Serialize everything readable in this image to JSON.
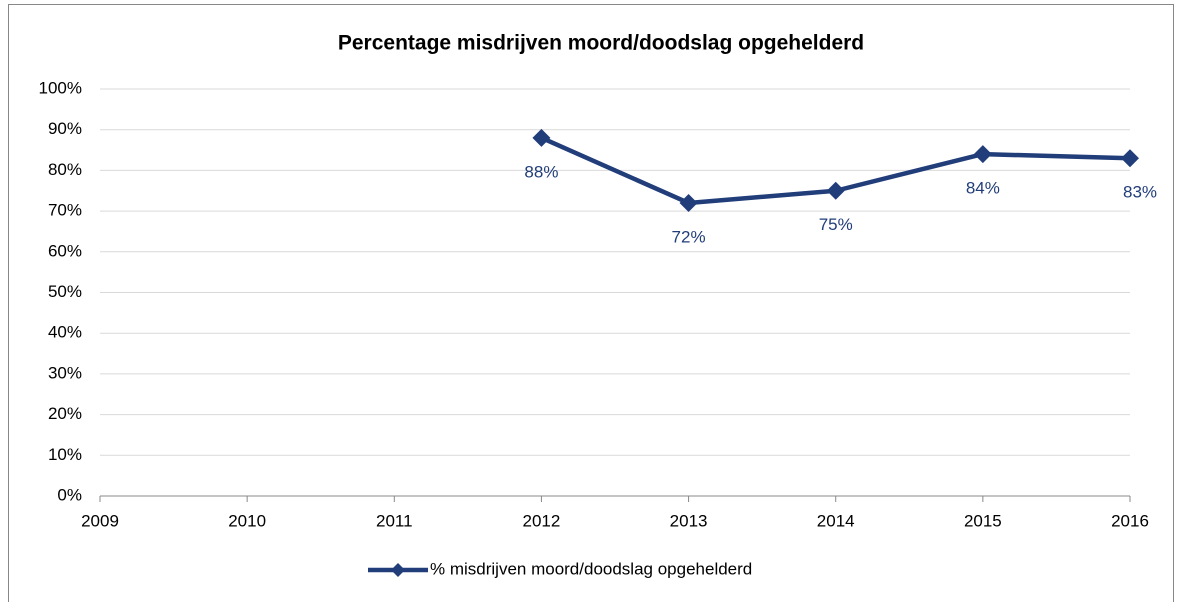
{
  "chart_data": {
    "type": "line",
    "title": "Percentage misdrijven moord/doodslag opgehelderd",
    "x": [
      2009,
      2010,
      2011,
      2012,
      2013,
      2014,
      2015,
      2016
    ],
    "xlim": [
      2009,
      2016
    ],
    "xticks": [
      2009,
      2010,
      2011,
      2012,
      2013,
      2014,
      2015,
      2016
    ],
    "series": [
      {
        "name": "% misdrijven moord/doodslag opgehelderd",
        "color": "#213d7a",
        "values": [
          null,
          null,
          null,
          88,
          72,
          75,
          84,
          83
        ],
        "value_labels": [
          null,
          null,
          null,
          "88%",
          "72%",
          "75%",
          "84%",
          "83%"
        ]
      }
    ],
    "ylim": [
      0,
      100
    ],
    "yticks": [
      {
        "value": 0,
        "label": "0%"
      },
      {
        "value": 10,
        "label": "10%"
      },
      {
        "value": 20,
        "label": "20%"
      },
      {
        "value": 30,
        "label": "30%"
      },
      {
        "value": 40,
        "label": "40%"
      },
      {
        "value": 50,
        "label": "50%"
      },
      {
        "value": 60,
        "label": "60%"
      },
      {
        "value": 70,
        "label": "70%"
      },
      {
        "value": 80,
        "label": "80%"
      },
      {
        "value": 90,
        "label": "90%"
      },
      {
        "value": 100,
        "label": "100%"
      }
    ],
    "grid": true,
    "legend": "bottom"
  }
}
